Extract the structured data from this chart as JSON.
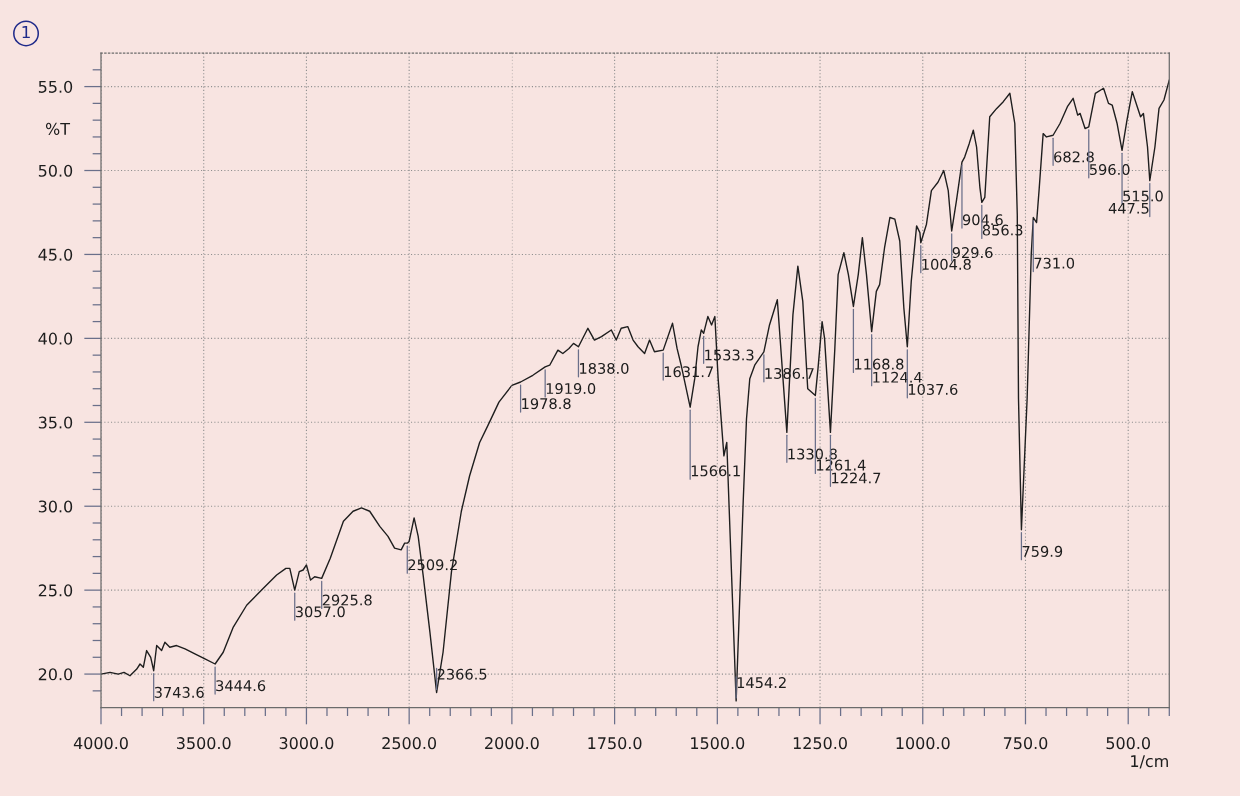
{
  "chart_data": [
    {
      "type": "line",
      "ylabel": "%T",
      "xlim": [
        4000,
        2000
      ],
      "ylim": [
        18,
        57
      ],
      "xticks": [
        {
          "value": 4000,
          "label": "4000.0"
        },
        {
          "value": 3900,
          "label": null
        },
        {
          "value": 3800,
          "label": null
        },
        {
          "value": 3700,
          "label": null
        },
        {
          "value": 3600,
          "label": null
        },
        {
          "value": 3500,
          "label": "3500.0"
        },
        {
          "value": 3400,
          "label": null
        },
        {
          "value": 3300,
          "label": null
        },
        {
          "value": 3200,
          "label": null
        },
        {
          "value": 3100,
          "label": null
        },
        {
          "value": 3000,
          "label": "3000.0"
        },
        {
          "value": 2900,
          "label": null
        },
        {
          "value": 2800,
          "label": null
        },
        {
          "value": 2700,
          "label": null
        },
        {
          "value": 2600,
          "label": null
        },
        {
          "value": 2500,
          "label": "2500.0"
        },
        {
          "value": 2400,
          "label": null
        },
        {
          "value": 2300,
          "label": null
        },
        {
          "value": 2200,
          "label": null
        },
        {
          "value": 2100,
          "label": null
        }
      ],
      "yticks": [
        {
          "value": 19,
          "label": null
        },
        {
          "value": 20,
          "label": "20.0"
        },
        {
          "value": 21,
          "label": null
        },
        {
          "value": 22,
          "label": null
        },
        {
          "value": 23,
          "label": null
        },
        {
          "value": 24,
          "label": null
        },
        {
          "value": 25,
          "label": "25.0"
        },
        {
          "value": 26,
          "label": null
        },
        {
          "value": 27,
          "label": null
        },
        {
          "value": 28,
          "label": null
        },
        {
          "value": 29,
          "label": null
        },
        {
          "value": 30,
          "label": "30.0"
        },
        {
          "value": 31,
          "label": null
        },
        {
          "value": 32,
          "label": null
        },
        {
          "value": 33,
          "label": null
        },
        {
          "value": 34,
          "label": null
        },
        {
          "value": 35,
          "label": "35.0"
        },
        {
          "value": 36,
          "label": null
        },
        {
          "value": 37,
          "label": null
        },
        {
          "value": 38,
          "label": null
        },
        {
          "value": 39,
          "label": null
        },
        {
          "value": 40,
          "label": "40.0"
        },
        {
          "value": 41,
          "label": null
        },
        {
          "value": 42,
          "label": null
        },
        {
          "value": 43,
          "label": null
        },
        {
          "value": 44,
          "label": null
        },
        {
          "value": 45,
          "label": "45.0"
        },
        {
          "value": 46,
          "label": null
        },
        {
          "value": 47,
          "label": null
        },
        {
          "value": 48,
          "label": null
        },
        {
          "value": 49,
          "label": null
        },
        {
          "value": 50,
          "label": "50.0"
        },
        {
          "value": 51,
          "label": null
        },
        {
          "value": 52,
          "label": null
        },
        {
          "value": 53,
          "label": null
        },
        {
          "value": 54,
          "label": null
        },
        {
          "value": 55,
          "label": "55.0"
        },
        {
          "value": 56,
          "label": null
        }
      ],
      "grid": true,
      "series": [
        {
          "color": "#1e1e1e",
          "x": [
            4000,
            3956,
            3916,
            3888,
            3859,
            3826,
            3810,
            3794,
            3778,
            3758,
            3743.6,
            3729,
            3705,
            3689,
            3665,
            3632,
            3591,
            3543,
            3494,
            3444.6,
            3405,
            3356,
            3291,
            3211,
            3145,
            3100,
            3081,
            3057.0,
            3035,
            3016,
            3000,
            2980,
            2960,
            2925.8,
            2884,
            2820,
            2773,
            2732,
            2692,
            2643,
            2603,
            2571,
            2539,
            2522,
            2509.2,
            2500,
            2476,
            2456,
            2432,
            2399,
            2366.5,
            2335,
            2294,
            2246,
            2206,
            2157,
            2117,
            2063,
            2000
          ],
          "values": [
            20.0,
            20.1,
            20.0,
            20.1,
            19.9,
            20.3,
            20.6,
            20.4,
            21.4,
            21.0,
            20.2,
            21.7,
            21.4,
            21.9,
            21.6,
            21.7,
            21.5,
            21.2,
            20.9,
            20.6,
            21.3,
            22.8,
            24.1,
            25.1,
            25.9,
            26.3,
            26.3,
            25.0,
            26.1,
            26.2,
            26.5,
            25.6,
            25.8,
            25.7,
            26.9,
            29.1,
            29.7,
            29.9,
            29.7,
            28.8,
            28.2,
            27.5,
            27.4,
            27.8,
            27.8,
            27.9,
            29.3,
            28.2,
            25.9,
            22.5,
            18.9,
            21.3,
            26.1,
            29.7,
            31.8,
            33.8,
            34.8,
            36.2,
            37.2
          ]
        }
      ],
      "annotations": [
        "1",
        {
          "text": "3743.6",
          "x": 3743.6,
          "y": 20.2
        },
        {
          "text": "3444.6",
          "x": 3444.6,
          "y": 20.6
        },
        {
          "text": "3057.0",
          "x": 3057.0,
          "y": 25.0
        },
        {
          "text": "2925.8",
          "x": 2925.8,
          "y": 25.7
        },
        {
          "text": "2509.2",
          "x": 2509.2,
          "y": 27.8
        },
        {
          "text": "2366.5",
          "x": 2366.5,
          "y": 18.9
        }
      ]
    },
    {
      "type": "line",
      "xlabel": "1/cm",
      "xlim": [
        2000,
        400
      ],
      "ylim": [
        18,
        57
      ],
      "tick_labels": "x",
      "xticks": [
        {
          "value": 2000,
          "label": "2000.0"
        },
        {
          "value": 1950,
          "label": null
        },
        {
          "value": 1900,
          "label": null
        },
        {
          "value": 1850,
          "label": null
        },
        {
          "value": 1800,
          "label": null
        },
        {
          "value": 1750,
          "label": "1750.0"
        },
        {
          "value": 1700,
          "label": null
        },
        {
          "value": 1650,
          "label": null
        },
        {
          "value": 1600,
          "label": null
        },
        {
          "value": 1550,
          "label": null
        },
        {
          "value": 1500,
          "label": "1500.0"
        },
        {
          "value": 1450,
          "label": null
        },
        {
          "value": 1400,
          "label": null
        },
        {
          "value": 1350,
          "label": null
        },
        {
          "value": 1300,
          "label": null
        },
        {
          "value": 1250,
          "label": "1250.0"
        },
        {
          "value": 1200,
          "label": null
        },
        {
          "value": 1150,
          "label": null
        },
        {
          "value": 1100,
          "label": null
        },
        {
          "value": 1050,
          "label": null
        },
        {
          "value": 1000,
          "label": "1000.0"
        },
        {
          "value": 950,
          "label": null
        },
        {
          "value": 900,
          "label": null
        },
        {
          "value": 850,
          "label": null
        },
        {
          "value": 800,
          "label": null
        },
        {
          "value": 750,
          "label": "750.0"
        },
        {
          "value": 700,
          "label": null
        },
        {
          "value": 650,
          "label": null
        },
        {
          "value": 600,
          "label": null
        },
        {
          "value": 550,
          "label": null
        },
        {
          "value": 500,
          "label": "500.0"
        },
        {
          "value": 450,
          "label": null
        },
        {
          "value": 400,
          "label": null
        }
      ],
      "yticks": [
        20,
        25,
        30,
        35,
        40,
        45,
        50,
        55
      ],
      "grid": true,
      "series": [
        {
          "color": "#1e1e1e",
          "x": [
            2000,
            1978.8,
            1949,
            1919.0,
            1908,
            1888,
            1876,
            1861,
            1850,
            1838.0,
            1815,
            1799,
            1782,
            1758,
            1746,
            1734,
            1718,
            1705,
            1693,
            1677,
            1665,
            1653,
            1631.7,
            1609,
            1598,
            1588,
            1566.1,
            1555,
            1547,
            1539,
            1533.3,
            1523,
            1514,
            1506,
            1498,
            1484,
            1477,
            1454.2,
            1437,
            1429,
            1421,
            1409,
            1386.7,
            1373,
            1354,
            1330.8,
            1316,
            1304,
            1292,
            1280,
            1261.4,
            1255,
            1245,
            1239,
            1224.7,
            1214,
            1206,
            1192,
            1181,
            1168.8,
            1157,
            1147,
            1137,
            1124.4,
            1113,
            1105,
            1093,
            1080,
            1068,
            1056,
            1046,
            1037.6,
            1028,
            1015,
            1007,
            1004.8,
            991,
            979,
            963,
            949,
            938,
            929.6,
            918,
            904.6,
            898,
            887,
            877,
            869,
            861,
            856.3,
            849,
            837,
            820,
            804,
            788,
            776,
            770,
            767,
            759.9,
            746,
            736,
            731.0,
            723,
            717,
            707,
            699,
            682.8,
            666,
            648,
            634,
            623,
            617,
            605,
            596.0,
            580,
            560,
            548,
            539,
            527,
            515.0,
            503,
            490,
            478,
            470,
            463,
            453,
            447.5,
            435,
            425,
            413,
            400
          ],
          "values": [
            37.2,
            37.4,
            37.8,
            38.3,
            38.4,
            39.3,
            39.1,
            39.4,
            39.7,
            39.5,
            40.6,
            39.9,
            40.1,
            40.5,
            39.9,
            40.6,
            40.7,
            39.9,
            39.5,
            39.1,
            39.9,
            39.2,
            39.3,
            40.9,
            39.4,
            38.4,
            35.9,
            37.6,
            39.5,
            40.5,
            40.3,
            41.3,
            40.8,
            41.3,
            37.6,
            33.0,
            33.8,
            18.4,
            30.3,
            35.2,
            37.6,
            38.4,
            39.2,
            40.8,
            42.3,
            34.4,
            41.4,
            44.3,
            42.2,
            37.0,
            36.6,
            38.2,
            41.0,
            40.0,
            34.4,
            39.4,
            43.8,
            45.1,
            43.8,
            41.9,
            43.8,
            46.0,
            43.8,
            40.4,
            42.8,
            43.2,
            45.4,
            47.2,
            47.1,
            45.8,
            41.8,
            39.5,
            43.4,
            46.7,
            46.3,
            45.7,
            46.8,
            48.8,
            49.3,
            50.0,
            48.8,
            46.4,
            48.2,
            50.5,
            50.8,
            51.6,
            52.4,
            51.4,
            49.0,
            48.1,
            48.4,
            53.2,
            53.7,
            54.1,
            54.6,
            52.8,
            47.4,
            36.4,
            28.6,
            36.4,
            45.0,
            47.2,
            46.9,
            48.8,
            52.2,
            52.0,
            52.1,
            52.8,
            53.8,
            54.3,
            53.3,
            53.4,
            52.5,
            52.6,
            54.6,
            54.9,
            54.0,
            53.9,
            52.8,
            51.2,
            53.0,
            54.7,
            53.8,
            53.2,
            53.4,
            51.4,
            49.4,
            51.4,
            53.7,
            54.2,
            55.4
          ]
        }
      ],
      "annotations": [
        {
          "text": "1978.8",
          "x": 1978.8,
          "y": 37.4
        },
        {
          "text": "1919.0",
          "x": 1919.0,
          "y": 38.3
        },
        {
          "text": "1838.0",
          "x": 1838.0,
          "y": 39.5
        },
        {
          "text": "1631.7",
          "x": 1631.7,
          "y": 39.3
        },
        {
          "text": "1566.1",
          "x": 1566.1,
          "y": 35.9
        },
        {
          "text": "1533.3",
          "x": 1533.3,
          "y": 40.3
        },
        {
          "text": "1454.2",
          "x": 1454.2,
          "y": 18.4
        },
        {
          "text": "1386.7",
          "x": 1386.7,
          "y": 39.2
        },
        {
          "text": "1330.8",
          "x": 1330.8,
          "y": 34.4
        },
        {
          "text": "1261.4",
          "x": 1261.4,
          "y": 36.6
        },
        {
          "text": "1224.7",
          "x": 1224.7,
          "y": 34.4
        },
        {
          "text": "1168.8",
          "x": 1168.8,
          "y": 41.9
        },
        {
          "text": "1124.4",
          "x": 1124.4,
          "y": 40.4
        },
        {
          "text": "1037.6",
          "x": 1037.6,
          "y": 39.5
        },
        {
          "text": "1004.8",
          "x": 1004.8,
          "y": 45.7
        },
        {
          "text": "929.6",
          "x": 929.6,
          "y": 46.4
        },
        {
          "text": "904.6",
          "x": 904.6,
          "y": 50.5
        },
        {
          "text": "856.3",
          "x": 856.3,
          "y": 48.1
        },
        {
          "text": "759.9",
          "x": 759.9,
          "y": 28.6
        },
        {
          "text": "731.0",
          "x": 731.0,
          "y": 47.2
        },
        {
          "text": "682.8",
          "x": 682.8,
          "y": 52.1
        },
        {
          "text": "596.0",
          "x": 596.0,
          "y": 52.6
        },
        {
          "text": "515.0",
          "x": 515.0,
          "y": 51.2
        },
        {
          "text": "447.5",
          "x": 447.5,
          "y": 49.4
        }
      ]
    }
  ]
}
